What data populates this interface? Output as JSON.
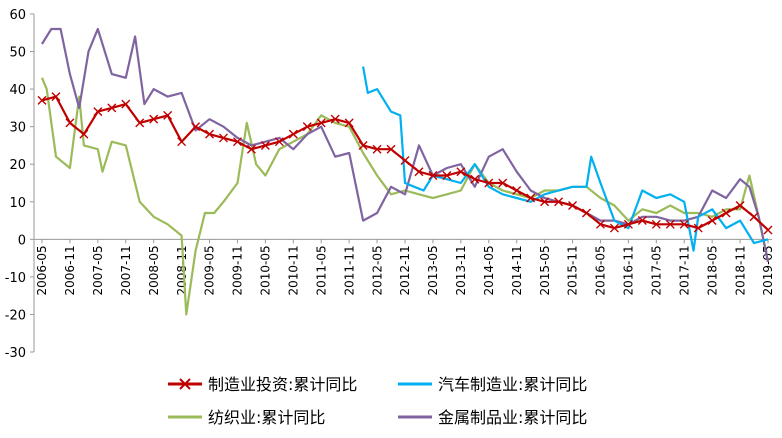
{
  "chart_data": {
    "type": "line",
    "ylim": [
      -30,
      60
    ],
    "yticks": [
      -30,
      -20,
      -10,
      0,
      10,
      20,
      30,
      40,
      50,
      60
    ],
    "xticks": [
      "2006-05",
      "2006-11",
      "2007-05",
      "2007-11",
      "2008-05",
      "2008-11",
      "2009-05",
      "2009-11",
      "2010-05",
      "2010-11",
      "2011-05",
      "2011-11",
      "2012-05",
      "2012-11",
      "2013-05",
      "2013-11",
      "2014-05",
      "2014-11",
      "2015-05",
      "2015-11",
      "2016-05",
      "2016-11",
      "2017-05",
      "2017-11",
      "2018-05",
      "2018-11",
      "2019-05"
    ],
    "grid": false,
    "legend": "bottom",
    "series": [
      {
        "name": "制造业投资:累计同比",
        "color": "#c00000",
        "marker": "x",
        "x": [
          "2006-05",
          "2006-08",
          "2006-11",
          "2007-02",
          "2007-05",
          "2007-08",
          "2007-11",
          "2008-02",
          "2008-05",
          "2008-08",
          "2008-11",
          "2009-02",
          "2009-05",
          "2009-08",
          "2009-11",
          "2010-02",
          "2010-05",
          "2010-08",
          "2010-11",
          "2011-02",
          "2011-05",
          "2011-08",
          "2011-11",
          "2012-02",
          "2012-05",
          "2012-08",
          "2012-11",
          "2013-02",
          "2013-05",
          "2013-08",
          "2013-11",
          "2014-02",
          "2014-05",
          "2014-08",
          "2014-11",
          "2015-02",
          "2015-05",
          "2015-08",
          "2015-11",
          "2016-02",
          "2016-05",
          "2016-08",
          "2016-11",
          "2017-02",
          "2017-05",
          "2017-08",
          "2017-11",
          "2018-02",
          "2018-05",
          "2018-08",
          "2018-11",
          "2019-02",
          "2019-05"
        ],
        "values": [
          37,
          38,
          31,
          28,
          34,
          35,
          36,
          31,
          32,
          33,
          26,
          30,
          28,
          27,
          26,
          24,
          25,
          26,
          28,
          30,
          31,
          32,
          31,
          25,
          24,
          24,
          21,
          18,
          17,
          17,
          18,
          16,
          15,
          15,
          13,
          11,
          10,
          10,
          9,
          7,
          4,
          3,
          4,
          5,
          4,
          4,
          4,
          3,
          5,
          7,
          9,
          6,
          2.5
        ]
      },
      {
        "name": "汽车制造业:累计同比",
        "color": "#00b0f0",
        "x": [
          "2012-02",
          "2012-03",
          "2012-05",
          "2012-08",
          "2012-10",
          "2012-11",
          "2013-01",
          "2013-03",
          "2013-05",
          "2013-08",
          "2013-11",
          "2014-02",
          "2014-05",
          "2014-08",
          "2014-11",
          "2015-02",
          "2015-05",
          "2015-08",
          "2015-11",
          "2016-02",
          "2016-03",
          "2016-05",
          "2016-08",
          "2016-11",
          "2017-02",
          "2017-05",
          "2017-08",
          "2017-11",
          "2018-01",
          "2018-02",
          "2018-05",
          "2018-08",
          "2018-11",
          "2019-02",
          "2019-05"
        ],
        "values": [
          46,
          39,
          40,
          34,
          33,
          15,
          14,
          13,
          17,
          16,
          15,
          20,
          14,
          12,
          11,
          10,
          12,
          13,
          14,
          14,
          22,
          15,
          5,
          3,
          13,
          11,
          12,
          10,
          -3,
          6,
          8,
          3,
          5,
          -1,
          0
        ]
      },
      {
        "name": "纺织业:累计同比",
        "color": "#9bbb59",
        "x": [
          "2006-05",
          "2006-06",
          "2006-08",
          "2006-11",
          "2007-01",
          "2007-02",
          "2007-05",
          "2007-06",
          "2007-08",
          "2007-11",
          "2008-02",
          "2008-05",
          "2008-08",
          "2008-11",
          "2008-12",
          "2009-02",
          "2009-04",
          "2009-06",
          "2009-08",
          "2009-11",
          "2010-01",
          "2010-03",
          "2010-05",
          "2010-08",
          "2010-11",
          "2011-02",
          "2011-05",
          "2011-08",
          "2011-11",
          "2012-02",
          "2012-05",
          "2012-08",
          "2012-11",
          "2013-02",
          "2013-05",
          "2013-08",
          "2013-11",
          "2014-02",
          "2014-05",
          "2014-08",
          "2014-11",
          "2015-02",
          "2015-05",
          "2015-08",
          "2015-11",
          "2016-02",
          "2016-05",
          "2016-08",
          "2016-11",
          "2017-02",
          "2017-05",
          "2017-08",
          "2017-11",
          "2018-02",
          "2018-05",
          "2018-08",
          "2018-11",
          "2019-01",
          "2019-03",
          "2019-05"
        ],
        "values": [
          43,
          40,
          22,
          19,
          38,
          25,
          24,
          18,
          26,
          25,
          10,
          6,
          4,
          1,
          -20,
          -3,
          7,
          7,
          10,
          15,
          31,
          20,
          17,
          24,
          26,
          28,
          33,
          31,
          30,
          23,
          17,
          12,
          13,
          12,
          11,
          12,
          13,
          20,
          15,
          13,
          12,
          11,
          13,
          13,
          14,
          14,
          11,
          9,
          5,
          8,
          7,
          9,
          7,
          7,
          6,
          8,
          8,
          17,
          6,
          -6
        ]
      },
      {
        "name": "金属制品业:累计同比",
        "color": "#8064a2",
        "x": [
          "2006-05",
          "2006-07",
          "2006-09",
          "2006-11",
          "2007-01",
          "2007-03",
          "2007-05",
          "2007-08",
          "2007-11",
          "2008-01",
          "2008-03",
          "2008-05",
          "2008-08",
          "2008-11",
          "2009-02",
          "2009-05",
          "2009-08",
          "2009-11",
          "2010-02",
          "2010-05",
          "2010-08",
          "2010-11",
          "2011-02",
          "2011-05",
          "2011-08",
          "2011-11",
          "2012-02",
          "2012-05",
          "2012-08",
          "2012-11",
          "2013-02",
          "2013-05",
          "2013-08",
          "2013-11",
          "2014-02",
          "2014-05",
          "2014-08",
          "2014-11",
          "2015-02",
          "2015-05",
          "2015-08",
          "2015-11",
          "2016-02",
          "2016-05",
          "2016-08",
          "2016-11",
          "2017-02",
          "2017-05",
          "2017-08",
          "2017-11",
          "2018-02",
          "2018-05",
          "2018-08",
          "2018-11",
          "2019-01",
          "2019-03",
          "2019-05"
        ],
        "values": [
          52,
          56,
          56,
          44,
          35,
          50,
          56,
          44,
          43,
          54,
          36,
          40,
          38,
          39,
          29,
          32,
          30,
          27,
          25,
          26,
          27,
          24,
          28,
          30,
          22,
          23,
          5,
          7,
          14,
          12,
          25,
          17,
          19,
          20,
          14,
          22,
          24,
          18,
          13,
          11,
          10,
          9,
          7,
          5,
          5,
          4,
          6,
          6,
          5,
          5,
          6,
          13,
          11,
          16,
          14,
          6,
          -6
        ]
      }
    ]
  }
}
